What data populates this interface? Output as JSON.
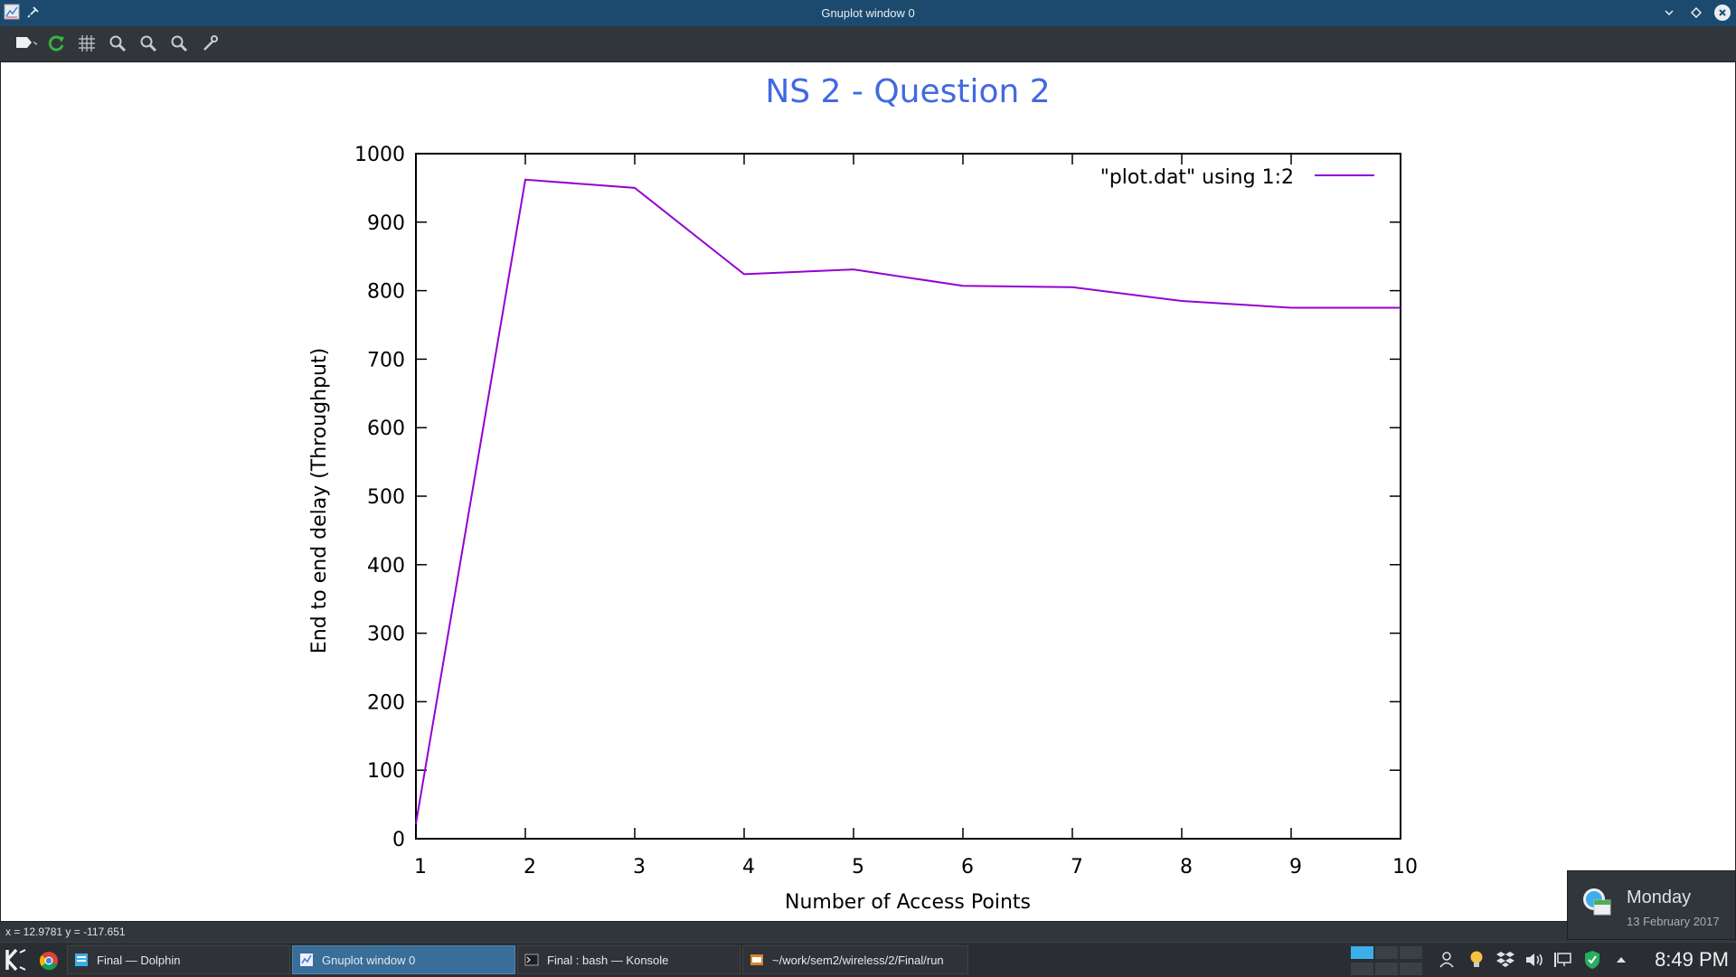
{
  "window": {
    "title": "Gnuplot window 0"
  },
  "statusbar": {
    "coords": "x = 12.9781 y = -117.651"
  },
  "chart_data": {
    "type": "line",
    "title": "NS 2 - Question 2",
    "xlabel": "Number of Access Points",
    "ylabel": "End to end delay (Throughput)",
    "xlim": [
      1,
      10
    ],
    "ylim": [
      0,
      1000
    ],
    "xticks": [
      1,
      2,
      3,
      4,
      5,
      6,
      7,
      8,
      9,
      10
    ],
    "yticks": [
      0,
      100,
      200,
      300,
      400,
      500,
      600,
      700,
      800,
      900,
      1000
    ],
    "legend_position": "top-right",
    "grid": false,
    "series": [
      {
        "name": "\"plot.dat\" using 1:2",
        "color": "#9400d3",
        "x": [
          1,
          2,
          3,
          4,
          5,
          6,
          7,
          8,
          9,
          10
        ],
        "y": [
          22,
          962,
          950,
          824,
          831,
          807,
          805,
          785,
          775,
          775
        ]
      }
    ]
  },
  "taskbar": {
    "tasks": [
      {
        "label": "Final — Dolphin"
      },
      {
        "label": "Gnuplot window 0"
      },
      {
        "label": "Final : bash — Konsole"
      },
      {
        "label": "~/work/sem2/wireless/2/Final/run"
      }
    ],
    "clock": "8:49 PM"
  },
  "notification": {
    "day": "Monday",
    "date": "13 February 2017"
  }
}
